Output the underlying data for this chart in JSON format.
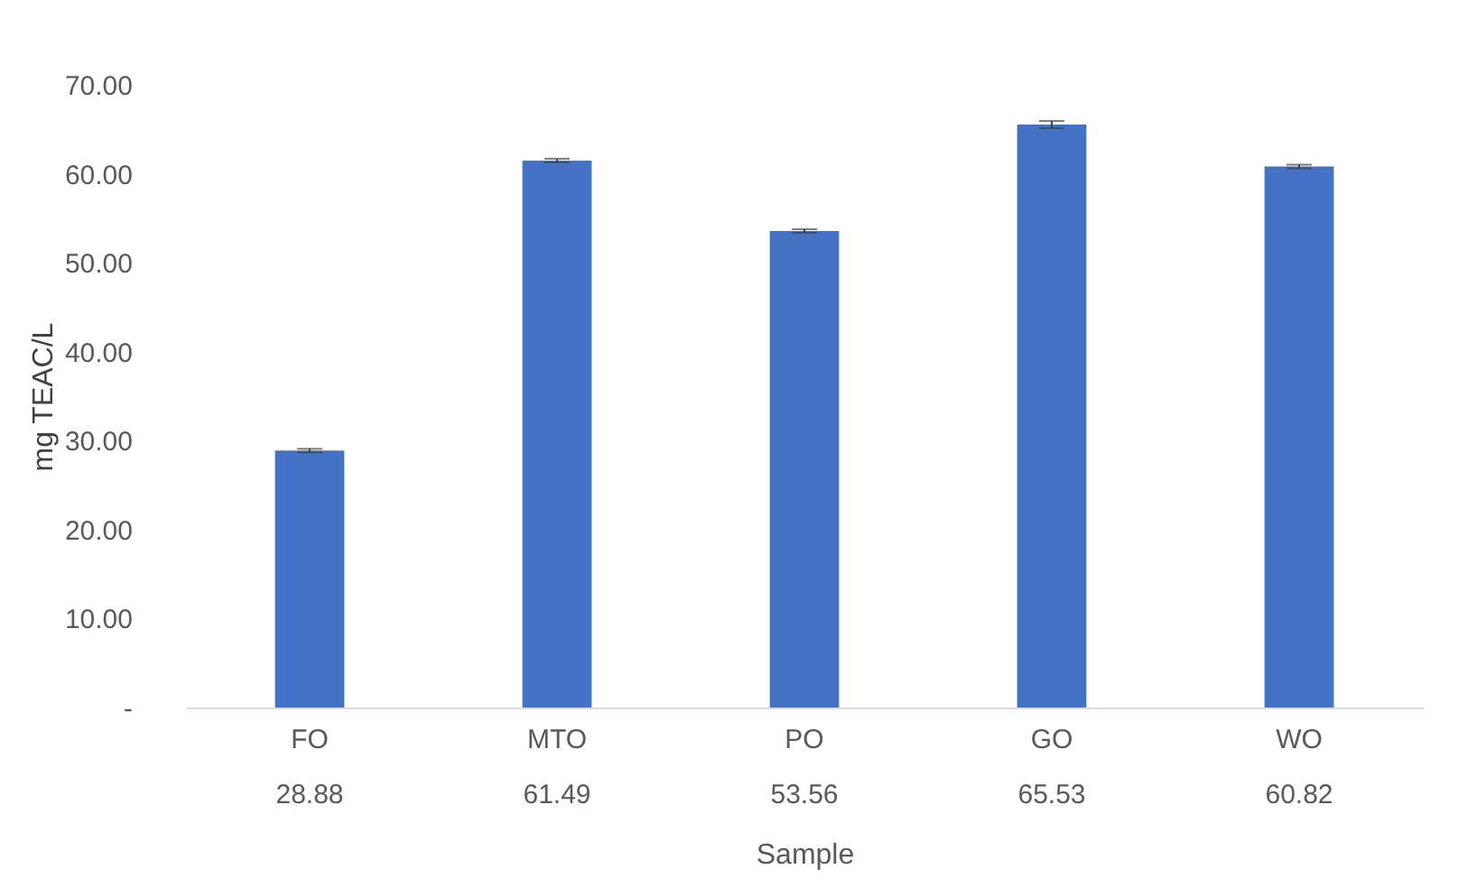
{
  "chart_data": {
    "type": "bar",
    "xlabel": "Sample",
    "ylabel": "mg TEAC/L",
    "categories": [
      "FO",
      "MTO",
      "PO",
      "GO",
      "WO"
    ],
    "values": [
      28.88,
      61.49,
      53.56,
      65.53,
      60.82
    ],
    "errors": [
      0.2,
      0.2,
      0.2,
      0.4,
      0.2
    ],
    "color": "#4472c4",
    "data_labels": true,
    "grid": false,
    "ylim": [
      0,
      70
    ],
    "yticks": [
      {
        "value": 0,
        "label": "-"
      },
      {
        "value": 10,
        "label": "10.00"
      },
      {
        "value": 20,
        "label": "20.00"
      },
      {
        "value": 30,
        "label": "30.00"
      },
      {
        "value": 40,
        "label": "40.00"
      },
      {
        "value": 50,
        "label": "50.00"
      },
      {
        "value": 60,
        "label": "60.00"
      },
      {
        "value": 70,
        "label": "70.00"
      }
    ]
  }
}
